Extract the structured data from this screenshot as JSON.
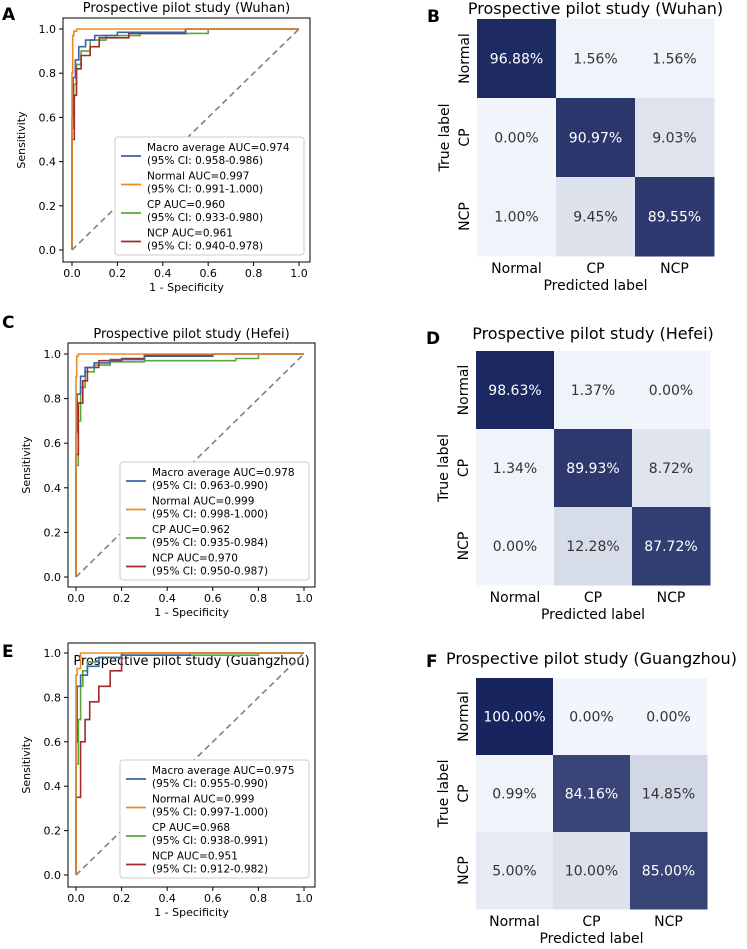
{
  "colors": {
    "macro": "#3a63a8",
    "normal": "#f08a24",
    "cp": "#5aa83a",
    "ncp": "#a32a2a",
    "diagonal": "#808080",
    "cm_low": "#f2f6fc",
    "cm_high": "#17245e"
  },
  "roc_axes": {
    "xlabel": "1 - Specificity",
    "ylabel": "Sensitivity",
    "xticks": [
      "0.0",
      "0.2",
      "0.4",
      "0.6",
      "0.8",
      "1.0"
    ],
    "yticks": [
      "0.0",
      "0.2",
      "0.4",
      "0.6",
      "0.8",
      "1.0"
    ]
  },
  "cm_axes": {
    "xlabel": "Predicted label",
    "ylabel": "True label",
    "labels": [
      "Normal",
      "CP",
      "NCP"
    ]
  },
  "chart_data": [
    {
      "panel": "A",
      "type": "line",
      "title": "Prospective pilot study (Wuhan)",
      "xlim": [
        0,
        1
      ],
      "ylim": [
        0,
        1
      ],
      "legend_position": "lower-right",
      "series": [
        {
          "key": "macro",
          "label": "Macro average AUC=0.974",
          "ci": "(95% CI: 0.958-0.986)",
          "points": [
            [
              0,
              0
            ],
            [
              0.005,
              0.6
            ],
            [
              0.015,
              0.78
            ],
            [
              0.03,
              0.86
            ],
            [
              0.06,
              0.92
            ],
            [
              0.1,
              0.95
            ],
            [
              0.2,
              0.97
            ],
            [
              0.5,
              0.985
            ],
            [
              1,
              1
            ]
          ]
        },
        {
          "key": "normal",
          "label": "Normal AUC=0.997",
          "ci": "(95% CI: 0.991-1.000)",
          "points": [
            [
              0,
              0
            ],
            [
              0.003,
              0.8
            ],
            [
              0.008,
              0.97
            ],
            [
              0.02,
              0.99
            ],
            [
              0.1,
              1
            ],
            [
              1,
              1
            ]
          ]
        },
        {
          "key": "cp",
          "label": "CP AUC=0.960",
          "ci": "(95% CI: 0.933-0.980)",
          "points": [
            [
              0,
              0
            ],
            [
              0.008,
              0.55
            ],
            [
              0.02,
              0.75
            ],
            [
              0.04,
              0.84
            ],
            [
              0.08,
              0.9
            ],
            [
              0.15,
              0.95
            ],
            [
              0.3,
              0.97
            ],
            [
              0.6,
              0.98
            ],
            [
              1,
              1
            ]
          ]
        },
        {
          "key": "ncp",
          "label": "NCP AUC=0.961",
          "ci": "(95% CI: 0.940-0.978)",
          "points": [
            [
              0,
              0
            ],
            [
              0.01,
              0.5
            ],
            [
              0.02,
              0.7
            ],
            [
              0.04,
              0.82
            ],
            [
              0.08,
              0.88
            ],
            [
              0.12,
              0.92
            ],
            [
              0.25,
              0.96
            ],
            [
              0.5,
              0.98
            ],
            [
              1,
              1
            ]
          ]
        }
      ]
    },
    {
      "panel": "B",
      "type": "heatmap",
      "title": "Prospective pilot study (Wuhan)",
      "values": [
        [
          96.88,
          1.56,
          1.56
        ],
        [
          0.0,
          90.97,
          9.03
        ],
        [
          1.0,
          9.45,
          89.55
        ]
      ],
      "cells": [
        [
          "96.88%",
          "1.56%",
          "1.56%"
        ],
        [
          "0.00%",
          "90.97%",
          "9.03%"
        ],
        [
          "1.00%",
          "9.45%",
          "89.55%"
        ]
      ]
    },
    {
      "panel": "C",
      "type": "line",
      "title": "Prospective pilot study (Hefei)",
      "xlim": [
        0,
        1
      ],
      "ylim": [
        0,
        1
      ],
      "legend_position": "lower-right",
      "series": [
        {
          "key": "macro",
          "label": "Macro average AUC=0.978",
          "ci": "(95% CI: 0.963-0.990)",
          "points": [
            [
              0,
              0
            ],
            [
              0.005,
              0.65
            ],
            [
              0.02,
              0.82
            ],
            [
              0.04,
              0.9
            ],
            [
              0.08,
              0.94
            ],
            [
              0.15,
              0.96
            ],
            [
              0.3,
              0.975
            ],
            [
              0.6,
              0.99
            ],
            [
              1,
              1
            ]
          ]
        },
        {
          "key": "normal",
          "label": "Normal AUC=0.999",
          "ci": "(95% CI: 0.998-1.000)",
          "points": [
            [
              0,
              0
            ],
            [
              0.003,
              0.9
            ],
            [
              0.01,
              0.99
            ],
            [
              0.02,
              1
            ],
            [
              1,
              1
            ]
          ]
        },
        {
          "key": "cp",
          "label": "CP AUC=0.962",
          "ci": "(95% CI: 0.935-0.984)",
          "points": [
            [
              0,
              0
            ],
            [
              0.01,
              0.5
            ],
            [
              0.02,
              0.7
            ],
            [
              0.04,
              0.85
            ],
            [
              0.08,
              0.92
            ],
            [
              0.15,
              0.95
            ],
            [
              0.3,
              0.965
            ],
            [
              0.7,
              0.97
            ],
            [
              0.8,
              0.98
            ],
            [
              1,
              1
            ]
          ]
        },
        {
          "key": "ncp",
          "label": "NCP AUC=0.970",
          "ci": "(95% CI: 0.950-0.987)",
          "points": [
            [
              0,
              0
            ],
            [
              0.01,
              0.55
            ],
            [
              0.03,
              0.78
            ],
            [
              0.05,
              0.88
            ],
            [
              0.1,
              0.94
            ],
            [
              0.2,
              0.97
            ],
            [
              0.3,
              0.98
            ],
            [
              0.6,
              0.995
            ],
            [
              1,
              1
            ]
          ]
        }
      ]
    },
    {
      "panel": "D",
      "type": "heatmap",
      "title": "Prospective pilot study (Hefei)",
      "values": [
        [
          98.63,
          1.37,
          0.0
        ],
        [
          1.34,
          89.93,
          8.72
        ],
        [
          0.0,
          12.28,
          87.72
        ]
      ],
      "cells": [
        [
          "98.63%",
          "1.37%",
          "0.00%"
        ],
        [
          "1.34%",
          "89.93%",
          "8.72%"
        ],
        [
          "0.00%",
          "12.28%",
          "87.72%"
        ]
      ]
    },
    {
      "panel": "E",
      "type": "line",
      "title": "Prospective pilot study (Guangzhou)",
      "xlim": [
        0,
        1
      ],
      "ylim": [
        0,
        1
      ],
      "legend_position": "lower-right",
      "series": [
        {
          "key": "macro",
          "label": "Macro average AUC=0.975",
          "ci": "(95% CI: 0.955-0.990)",
          "points": [
            [
              0,
              0
            ],
            [
              0.005,
              0.6
            ],
            [
              0.02,
              0.85
            ],
            [
              0.05,
              0.9
            ],
            [
              0.1,
              0.94
            ],
            [
              0.2,
              0.98
            ],
            [
              0.5,
              0.99
            ],
            [
              1,
              1
            ]
          ]
        },
        {
          "key": "normal",
          "label": "Normal AUC=0.999",
          "ci": "(95% CI: 0.997-1.000)",
          "points": [
            [
              0,
              0
            ],
            [
              0.005,
              0.9
            ],
            [
              0.02,
              0.93
            ],
            [
              0.025,
              1
            ],
            [
              1,
              1
            ]
          ]
        },
        {
          "key": "cp",
          "label": "CP AUC=0.968",
          "ci": "(95% CI: 0.938-0.991)",
          "points": [
            [
              0,
              0
            ],
            [
              0.01,
              0.5
            ],
            [
              0.02,
              0.7
            ],
            [
              0.03,
              0.85
            ],
            [
              0.05,
              0.92
            ],
            [
              0.1,
              0.96
            ],
            [
              0.2,
              0.98
            ],
            [
              0.8,
              0.99
            ],
            [
              1,
              1
            ]
          ]
        },
        {
          "key": "ncp",
          "label": "NCP AUC=0.951",
          "ci": "(95% CI: 0.912-0.982)",
          "points": [
            [
              0,
              0
            ],
            [
              0.02,
              0.35
            ],
            [
              0.04,
              0.6
            ],
            [
              0.06,
              0.7
            ],
            [
              0.1,
              0.78
            ],
            [
              0.15,
              0.85
            ],
            [
              0.2,
              0.92
            ],
            [
              0.25,
              1
            ],
            [
              1,
              1
            ]
          ]
        }
      ]
    },
    {
      "panel": "F",
      "type": "heatmap",
      "title": "Prospective pilot study (Guangzhou)",
      "values": [
        [
          100.0,
          0.0,
          0.0
        ],
        [
          0.99,
          84.16,
          14.85
        ],
        [
          5.0,
          10.0,
          85.0
        ]
      ],
      "cells": [
        [
          "100.00%",
          "0.00%",
          "0.00%"
        ],
        [
          "0.99%",
          "84.16%",
          "14.85%"
        ],
        [
          "5.00%",
          "10.00%",
          "85.00%"
        ]
      ]
    }
  ]
}
